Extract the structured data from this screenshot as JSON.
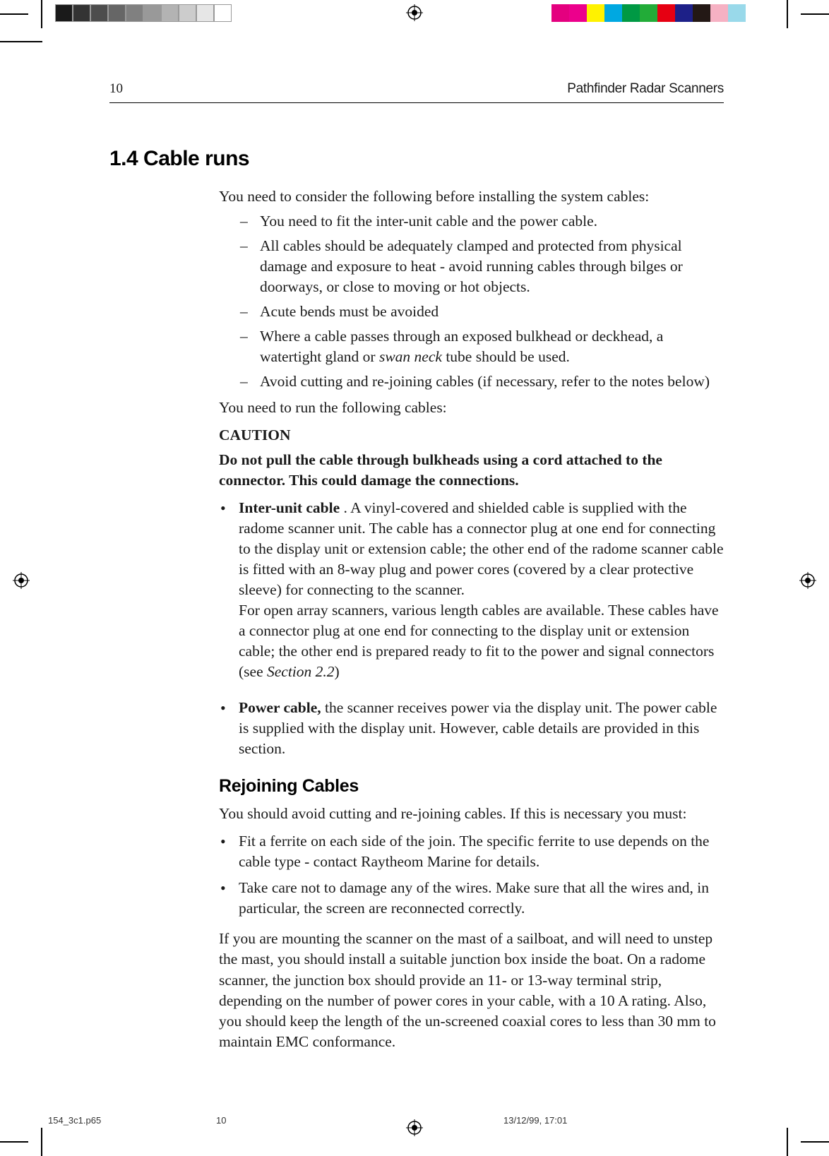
{
  "printer_marks": {
    "grayscale_swatches": [
      "#1a1a1a",
      "#333333",
      "#4d4d4d",
      "#666666",
      "#808080",
      "#999999",
      "#b3b3b3",
      "#cccccc",
      "#e6e6e6",
      "#ffffff"
    ],
    "color_swatches": [
      "#e4007f",
      "#ec008c",
      "#fff200",
      "#00a8e1",
      "#009944",
      "#22ac38",
      "#e60012",
      "#1d2088",
      "#231815",
      "#f6b1c3",
      "#99d9ea",
      "#ffffff"
    ]
  },
  "header": {
    "page_number": "10",
    "doc_title": "Pathfinder Radar Scanners"
  },
  "section": {
    "number_title": "1.4 Cable runs",
    "intro": "You need to consider the following before installing the system cables:",
    "dash_items": [
      "You need to fit the inter-unit cable and the power cable.",
      "All cables should be adequately clamped and protected from physical damage and exposure to heat - avoid running cables through bilges or doorways, or close to moving or hot objects.",
      "Acute bends must be avoided",
      "Where a cable passes through an exposed bulkhead or deckhead, a watertight gland or swan neck tube should be used.",
      "Avoid cutting and re-joining cables (if necessary, refer to the notes below)"
    ],
    "run_intro": "You need to run the following cables:",
    "caution_head": "CAUTION",
    "caution_body": "Do not pull the cable through bulkheads using a cord attached to the connector. This could damage the connections.",
    "bullets": [
      {
        "lead": "Inter-unit cable ",
        "text": ". A vinyl-covered and shielded cable is supplied with the radome scanner unit. The cable has a connector plug at one end for connecting to the display unit or extension cable; the other end of the radome scanner cable is fitted with an 8-way plug and power cores (covered by a clear protective sleeve) for connecting to the scanner.",
        "text2": "For open array scanners, various length cables are available. These cables have a connector plug at one end for connecting to the display unit or extension cable; the other end is prepared ready to fit to the power and signal connectors (see ",
        "ref": "Section 2.2",
        "text3": ")"
      },
      {
        "lead": "Power cable,",
        "text": " the scanner receives power via the display unit. The power cable is supplied with the display unit. However, cable details are provided in this section."
      }
    ],
    "sub_heading": "Rejoining Cables",
    "rejoin_intro": "You should avoid cutting and re-joining cables. If this is necessary you must:",
    "rejoin_bullets": [
      "Fit a ferrite on each side of the join. The specific ferrite to use depends on the cable type - contact Raytheom Marine for details.",
      "Take care not to damage any of the wires. Make sure that all the wires and, in particular, the screen are reconnected correctly."
    ],
    "closing": "If you are mounting the scanner on the mast of a sailboat, and will need to unstep the mast, you should install a suitable junction box inside the boat. On a radome scanner, the junction box should provide an 11- or 13-way terminal strip, depending on the number of power cores in your cable, with a 10 A rating. Also, you should keep the length of the un-screened coaxial cores to less than 30 mm to maintain EMC conformance."
  },
  "footer": {
    "file": "154_3c1.p65",
    "page": "10",
    "timestamp": "13/12/99, 17:01"
  }
}
